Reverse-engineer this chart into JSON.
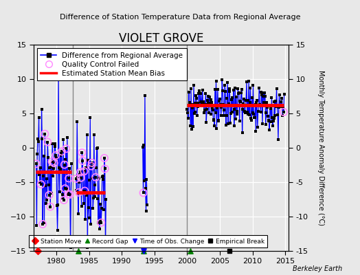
{
  "title": "VIOLET GROVE",
  "subtitle": "Difference of Station Temperature Data from Regional Average",
  "ylabel_right": "Monthly Temperature Anomaly Difference (°C)",
  "xlim": [
    1976.5,
    2015.5
  ],
  "ylim": [
    -15,
    15
  ],
  "yticks": [
    -15,
    -10,
    -5,
    0,
    5,
    10,
    15
  ],
  "xticks": [
    1980,
    1985,
    1990,
    1995,
    2000,
    2005,
    2010,
    2015
  ],
  "fig_bg_color": "#e8e8e8",
  "plot_bg_color": "#e8e8e8",
  "grid_color": "#d0d0d0",
  "watermark": "Berkeley Earth",
  "segment1_bias": -3.5,
  "segment1_xstart": 1976.8,
  "segment1_xend": 1982.3,
  "segment2_bias": -6.5,
  "segment2_xstart": 1983.0,
  "segment2_xend": 1987.5,
  "segment3_bias": 6.2,
  "segment3_xstart": 2000.0,
  "segment3_xend": 2014.8,
  "vline1_x": 1982.5,
  "vline2_x": 2000.0,
  "station_moves": [
    1977.1
  ],
  "record_gaps": [
    1983.4,
    1993.3,
    2000.5
  ],
  "obs_changes": [
    1993.35
  ],
  "empirical_breaks": [
    2006.5
  ],
  "qc_marker_color": "#ff88ff",
  "bias_color": "red",
  "line_color": "blue",
  "dot_color": "black",
  "vline_color": "#888888"
}
